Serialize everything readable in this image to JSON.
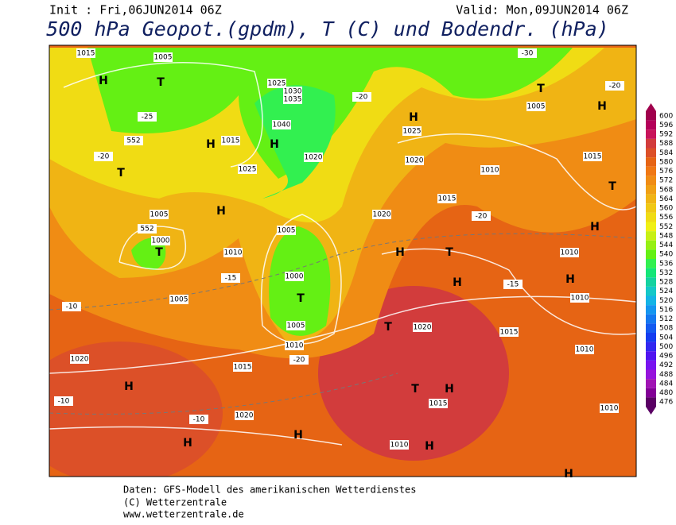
{
  "header": {
    "init": "Init : Fri,06JUN2014 06Z",
    "valid": "Valid: Mon,09JUN2014 06Z",
    "title": "500 hPa Geopot.(gpdm), T (C) und Bodendr. (hPa)"
  },
  "legend": {
    "levels": [
      600,
      596,
      592,
      588,
      584,
      580,
      576,
      572,
      568,
      564,
      560,
      556,
      552,
      548,
      544,
      540,
      536,
      532,
      528,
      524,
      520,
      516,
      512,
      508,
      504,
      500,
      496,
      492,
      488,
      484,
      480,
      476
    ],
    "colors": [
      "#a0004c",
      "#b4005a",
      "#c8145a",
      "#d23c3c",
      "#dc5028",
      "#e66414",
      "#f07814",
      "#f08c14",
      "#f0a014",
      "#f0b414",
      "#f0c814",
      "#f0dc14",
      "#f0f014",
      "#c8f014",
      "#96f014",
      "#64f014",
      "#32f050",
      "#14e678",
      "#14d2a0",
      "#14c8c8",
      "#14b4e6",
      "#1496f0",
      "#1478f0",
      "#145af0",
      "#143cf0",
      "#3228f0",
      "#5014f0",
      "#7814f0",
      "#9614dc",
      "#a014b4",
      "#820096",
      "#5a0064"
    ]
  },
  "map_labels": [
    "1015",
    "1005",
    "H",
    "T",
    "1025",
    "1030",
    "1035",
    "1040",
    "H",
    "1020",
    "1015",
    "1025",
    "H",
    "T",
    "552",
    "1005",
    "1000",
    "T",
    "552",
    "H",
    "1010",
    "1005",
    "1005",
    "1000",
    "T",
    "1005",
    "1010",
    "1020",
    "1015",
    "1020",
    "H",
    "H",
    "H",
    "H",
    "1025",
    "1020",
    "1015",
    "1020",
    "H",
    "T",
    "H",
    "1020",
    "T",
    "1015",
    "T",
    "H",
    "1015",
    "1010",
    "H",
    "T",
    "1005",
    "H",
    "1015",
    "1010",
    "T",
    "H",
    "1010",
    "H",
    "1010",
    "1010",
    "1010",
    "H",
    "-20",
    "-25",
    "-20",
    "-15",
    "-10",
    "-20",
    "-10",
    "-10",
    "-20",
    "-15",
    "-30",
    "-20"
  ],
  "footer": [
    "Daten: GFS-Modell des amerikanischen Wetterdienstes",
    "(C) Wetterzentrale",
    "www.wetterzentrale.de"
  ]
}
